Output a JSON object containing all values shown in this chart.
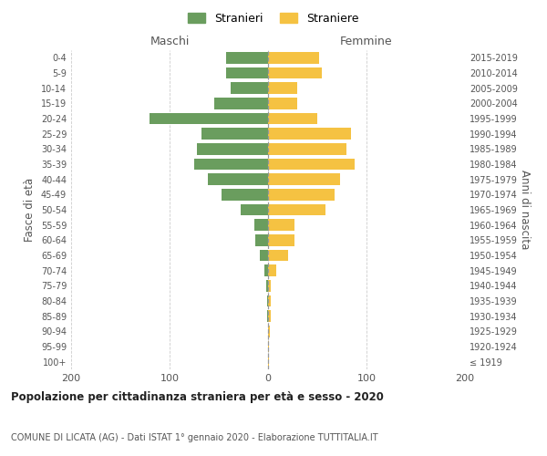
{
  "age_groups": [
    "100+",
    "95-99",
    "90-94",
    "85-89",
    "80-84",
    "75-79",
    "70-74",
    "65-69",
    "60-64",
    "55-59",
    "50-54",
    "45-49",
    "40-44",
    "35-39",
    "30-34",
    "25-29",
    "20-24",
    "15-19",
    "10-14",
    "5-9",
    "0-4"
  ],
  "birth_years": [
    "≤ 1919",
    "1920-1924",
    "1925-1929",
    "1930-1934",
    "1935-1939",
    "1940-1944",
    "1945-1949",
    "1950-1954",
    "1955-1959",
    "1960-1964",
    "1965-1969",
    "1970-1974",
    "1975-1979",
    "1980-1984",
    "1985-1989",
    "1990-1994",
    "1995-1999",
    "2000-2004",
    "2005-2009",
    "2010-2014",
    "2015-2019"
  ],
  "maschi": [
    0,
    0,
    0,
    1,
    1,
    2,
    4,
    8,
    13,
    14,
    28,
    47,
    61,
    75,
    72,
    68,
    120,
    55,
    38,
    43,
    43
  ],
  "femmine": [
    1,
    1,
    2,
    3,
    3,
    3,
    8,
    20,
    27,
    27,
    58,
    68,
    73,
    88,
    80,
    84,
    50,
    30,
    30,
    55,
    52
  ],
  "male_color": "#6a9d5e",
  "female_color": "#f5c242",
  "xlim": 200,
  "title": "Popolazione per cittadinanza straniera per età e sesso - 2020",
  "subtitle": "COMUNE DI LICATA (AG) - Dati ISTAT 1° gennaio 2020 - Elaborazione TUTTITALIA.IT",
  "ylabel_left": "Fasce di età",
  "ylabel_right": "Anni di nascita",
  "legend_stranieri": "Stranieri",
  "legend_straniere": "Straniere",
  "header_maschi": "Maschi",
  "header_femmine": "Femmine",
  "bg_color": "#ffffff",
  "grid_color": "#cccccc",
  "bar_height": 0.75
}
